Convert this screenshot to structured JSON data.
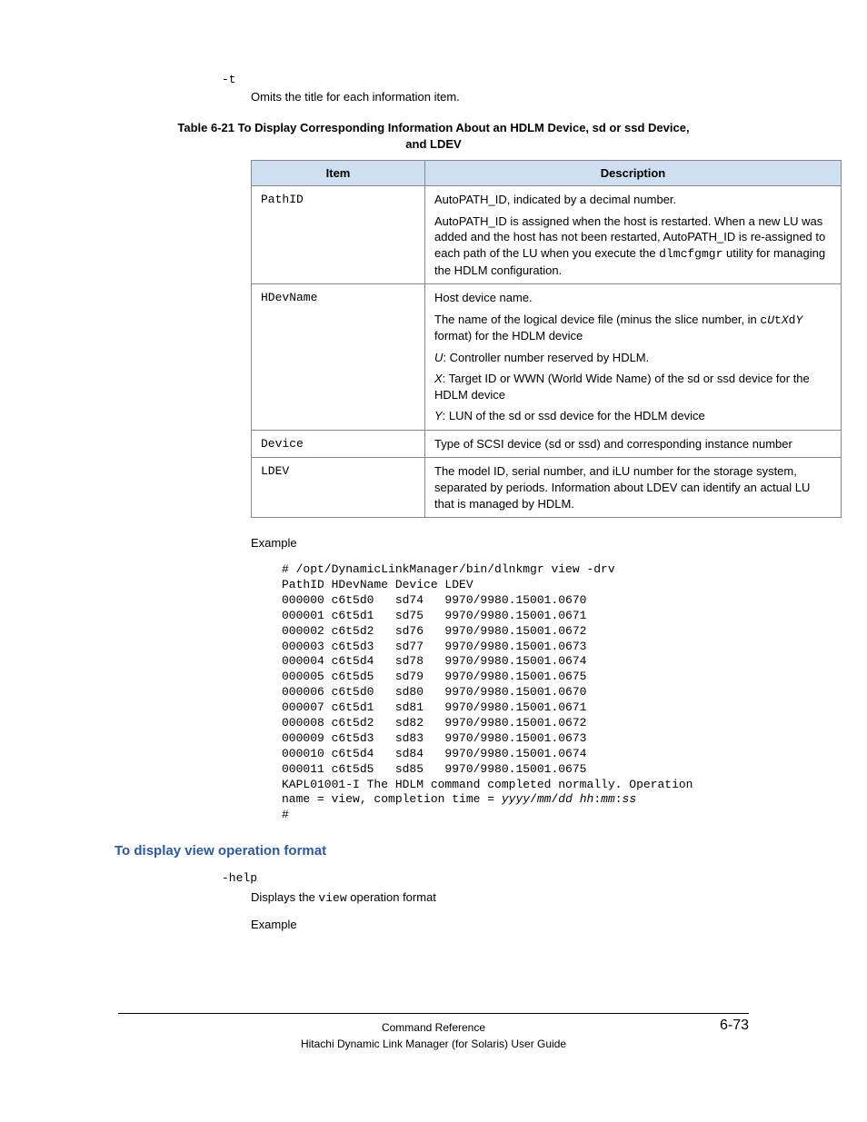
{
  "option_t": "-t",
  "option_t_desc": "Omits the title for each information item.",
  "table_caption": "Table 6-21 To Display Corresponding Information About an HDLM Device, sd or ssd Device, and LDEV",
  "table_head_item": "Item",
  "table_head_desc": "Description",
  "row_pathid_item": "PathID",
  "row_pathid_p1": "AutoPATH_ID, indicated by a decimal number.",
  "row_pathid_p2a": "AutoPATH_ID is assigned when the host is restarted. When a new LU was added and the host has not been restarted, AutoPATH_ID is re-assigned to each path of the LU when you execute the ",
  "row_pathid_mono": "dlmcfgmgr",
  "row_pathid_p2b": " utility for managing the HDLM configuration.",
  "row_hdev_item": "HDevName",
  "row_hdev_p1": "Host device name.",
  "row_hdev_p2a": "The name of the logical device file (minus the slice number, in ",
  "row_hdev_fmt_c": "c",
  "row_hdev_fmt_u": "U",
  "row_hdev_fmt_t": "t",
  "row_hdev_fmt_x": "X",
  "row_hdev_fmt_d": "d",
  "row_hdev_fmt_y": "Y",
  "row_hdev_p2b": " format) for the HDLM device",
  "row_hdev_u_lbl": "U",
  "row_hdev_u_txt": ": Controller number reserved by HDLM.",
  "row_hdev_x_lbl": "X",
  "row_hdev_x_txt": ": Target ID or WWN (World Wide Name) of the sd or ssd device for the HDLM device",
  "row_hdev_y_lbl": "Y",
  "row_hdev_y_txt": ": LUN of the sd or ssd device for the HDLM device",
  "row_device_item": "Device",
  "row_device_desc": "Type of SCSI device (sd or ssd) and corresponding instance number",
  "row_ldev_item": "LDEV",
  "row_ldev_desc": "The model ID, serial number, and iLU number for the storage system, separated by periods. Information about LDEV can identify an actual LU that is managed by HDLM.",
  "example_label": "Example",
  "code_l1": "# /opt/DynamicLinkManager/bin/dlnkmgr view -drv",
  "code_l2": "PathID HDevName Device LDEV",
  "code_l3": "000000 c6t5d0   sd74   9970/9980.15001.0670",
  "code_l4": "000001 c6t5d1   sd75   9970/9980.15001.0671",
  "code_l5": "000002 c6t5d2   sd76   9970/9980.15001.0672",
  "code_l6": "000003 c6t5d3   sd77   9970/9980.15001.0673",
  "code_l7": "000004 c6t5d4   sd78   9970/9980.15001.0674",
  "code_l8": "000005 c6t5d5   sd79   9970/9980.15001.0675",
  "code_l9": "000006 c6t5d0   sd80   9970/9980.15001.0670",
  "code_l10": "000007 c6t5d1   sd81   9970/9980.15001.0671",
  "code_l11": "000008 c6t5d2   sd82   9970/9980.15001.0672",
  "code_l12": "000009 c6t5d3   sd83   9970/9980.15001.0673",
  "code_l13": "000010 c6t5d4   sd84   9970/9980.15001.0674",
  "code_l14": "000011 c6t5d5   sd85   9970/9980.15001.0675",
  "code_l15": "KAPL01001-I The HDLM command completed normally. Operation ",
  "code_l16a": "name = view, completion time = ",
  "code_l16b": "yyyy",
  "code_l16c": "/",
  "code_l16d": "mm",
  "code_l16e": "/",
  "code_l16f": "dd hh",
  "code_l16g": ":",
  "code_l16h": "mm",
  "code_l16i": ":",
  "code_l16j": "ss",
  "code_l17": "#",
  "subhead": "To display view operation format",
  "help_opt": "-help",
  "help_desc_a": "Displays the ",
  "help_desc_mono": "view",
  "help_desc_b": " operation format",
  "example_label2": "Example",
  "footer_title": "Command Reference",
  "footer_sub": "Hitachi Dynamic Link Manager (for Solaris) User Guide",
  "footer_page": "6-73"
}
